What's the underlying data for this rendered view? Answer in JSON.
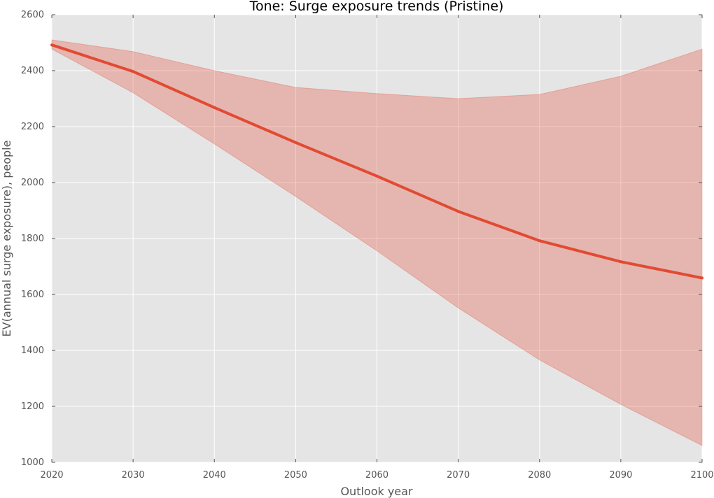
{
  "chart_data": {
    "type": "line",
    "title": "Tone: Surge exposure trends (Pristine)",
    "xlabel": "Outlook year",
    "ylabel": "EV(annual surge exposure), people",
    "xlim": [
      2020,
      2100
    ],
    "ylim": [
      1000,
      2600
    ],
    "x_ticks": [
      "2020",
      "2030",
      "2040",
      "2050",
      "2060",
      "2070",
      "2080",
      "2090",
      "2100"
    ],
    "y_ticks": [
      "1000",
      "1200",
      "1400",
      "1600",
      "1800",
      "2000",
      "2200",
      "2400",
      "2600"
    ],
    "grid": true,
    "legend": "none",
    "x": [
      2020,
      2030,
      2040,
      2050,
      2060,
      2070,
      2080,
      2090,
      2100
    ],
    "series": [
      {
        "values": [
          2492,
          2397,
          2268,
          2143,
          2023,
          1897,
          1792,
          1717,
          1659
        ],
        "band_lower": [
          2477,
          2321,
          2138,
          1950,
          1756,
          1552,
          1366,
          1207,
          1060
        ],
        "band_upper": [
          2510,
          2468,
          2400,
          2340,
          2318,
          2300,
          2315,
          2380,
          2477
        ],
        "color": "#e24a33"
      }
    ],
    "colors": {
      "plot_background": "#e5e5e5",
      "grid": "#ffffff",
      "band": "#e24a33",
      "line": "#e24a33"
    }
  }
}
